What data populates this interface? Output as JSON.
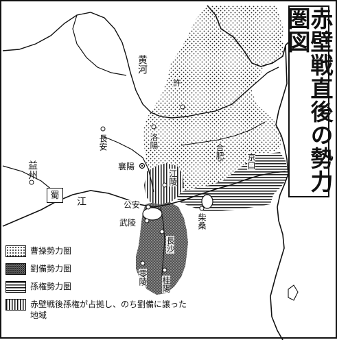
{
  "title": "赤壁戦直後の勢力圏図",
  "labels": {
    "yellow_river": "黄河",
    "chengdu_region": "益州",
    "shu": "蜀",
    "yangtze": "江",
    "changan": "長安",
    "xu": "許",
    "luoyang": "洛陽",
    "xiangyang": "襄陽",
    "jiangling": "江陵",
    "hefei": "合肥",
    "jingkou": "京口",
    "chaisang": "柴桑",
    "gongan": "公安",
    "wuling": "武陵",
    "changsha": "長沙",
    "lingling": "零陵",
    "guiyang": "桂陽"
  },
  "legend": [
    {
      "label": "曹操勢力圏",
      "pattern": "dots"
    },
    {
      "label": "劉備勢力圏",
      "pattern": "dense"
    },
    {
      "label": "孫権勢力圏",
      "pattern": "horizontal"
    },
    {
      "label": "赤壁戦後孫権が占拠し、のち劉備に譲った地域",
      "pattern": "vertical"
    }
  ]
}
